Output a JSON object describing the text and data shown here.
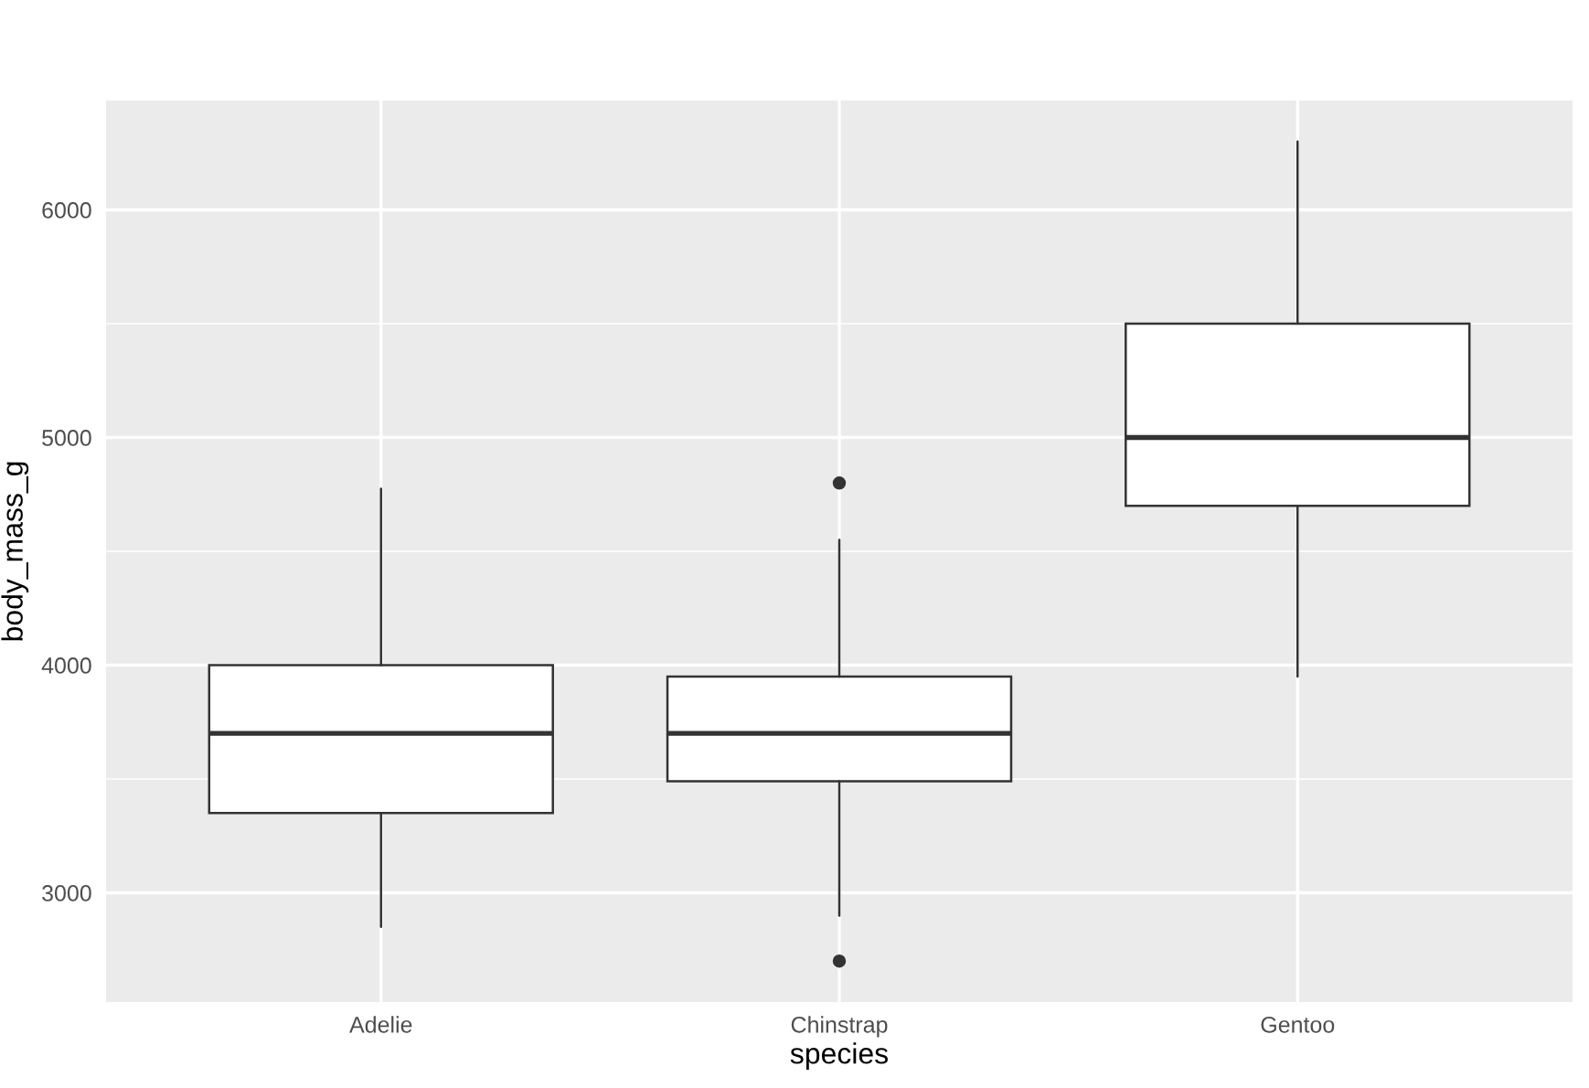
{
  "chart_data": {
    "type": "box",
    "xlabel": "species",
    "ylabel": "body_mass_g",
    "categories": [
      "Adelie",
      "Chinstrap",
      "Gentoo"
    ],
    "boxes": [
      {
        "low": 2850,
        "q1": 3350,
        "median": 3700,
        "q3": 4000,
        "high": 4775
      },
      {
        "low": 2900,
        "q1": 3490,
        "median": 3700,
        "q3": 3950,
        "high": 4550,
        "outliers": [
          2700,
          4800
        ]
      },
      {
        "low": 3950,
        "q1": 4700,
        "median": 5000,
        "q3": 5500,
        "high": 6300
      }
    ],
    "ylim": [
      2520,
      6480
    ],
    "yticks": [
      3000,
      4000,
      5000,
      6000
    ],
    "grid": true
  }
}
